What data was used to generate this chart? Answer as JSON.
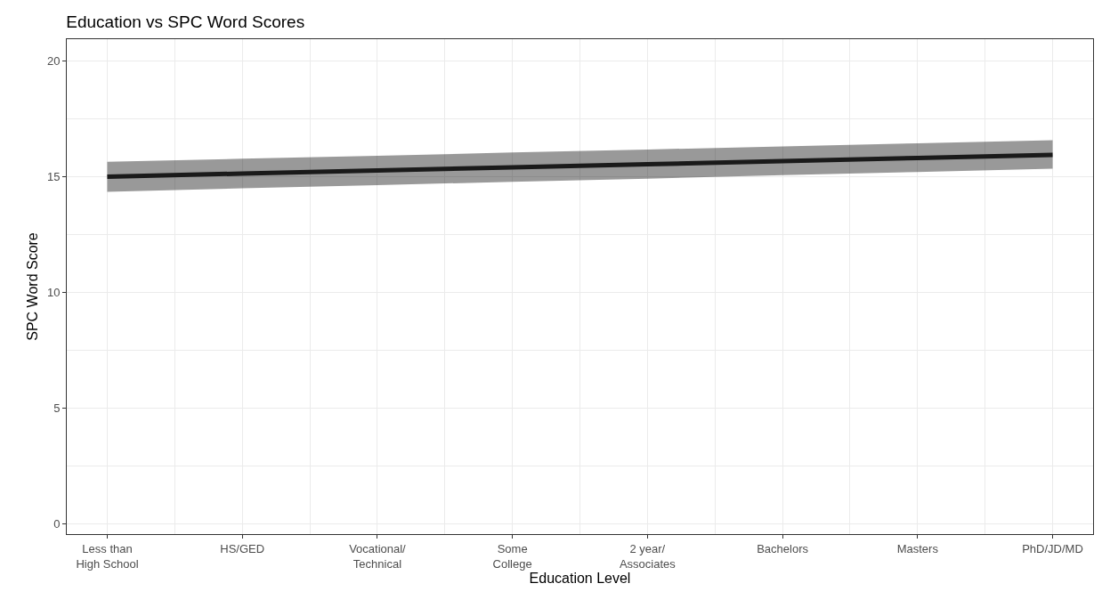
{
  "chart_data": {
    "type": "line",
    "title": "Education vs SPC Word Scores",
    "xlabel": "Education Level",
    "ylabel": "SPC Word Score",
    "categories": [
      "Less than\nHigh School",
      "HS/GED",
      "Vocational/\nTechnical",
      "Some\nCollege",
      "2 year/\nAssociates",
      "Bachelors",
      "Masters",
      "PhD/JD/MD"
    ],
    "series": [
      {
        "color": "#1a1a1a",
        "values": [
          15.0,
          15.14,
          15.27,
          15.41,
          15.54,
          15.68,
          15.81,
          15.95
        ],
        "lower": [
          14.35,
          14.5,
          14.64,
          14.78,
          14.92,
          15.07,
          15.21,
          15.35
        ],
        "upper": [
          15.65,
          15.78,
          15.91,
          16.05,
          16.18,
          16.31,
          16.45,
          16.58
        ]
      }
    ],
    "ylim": [
      -0.45,
      20.95
    ],
    "yticks": [
      0,
      5,
      10,
      15,
      20
    ],
    "grid": true,
    "marker": "none",
    "line_style": "solid"
  }
}
